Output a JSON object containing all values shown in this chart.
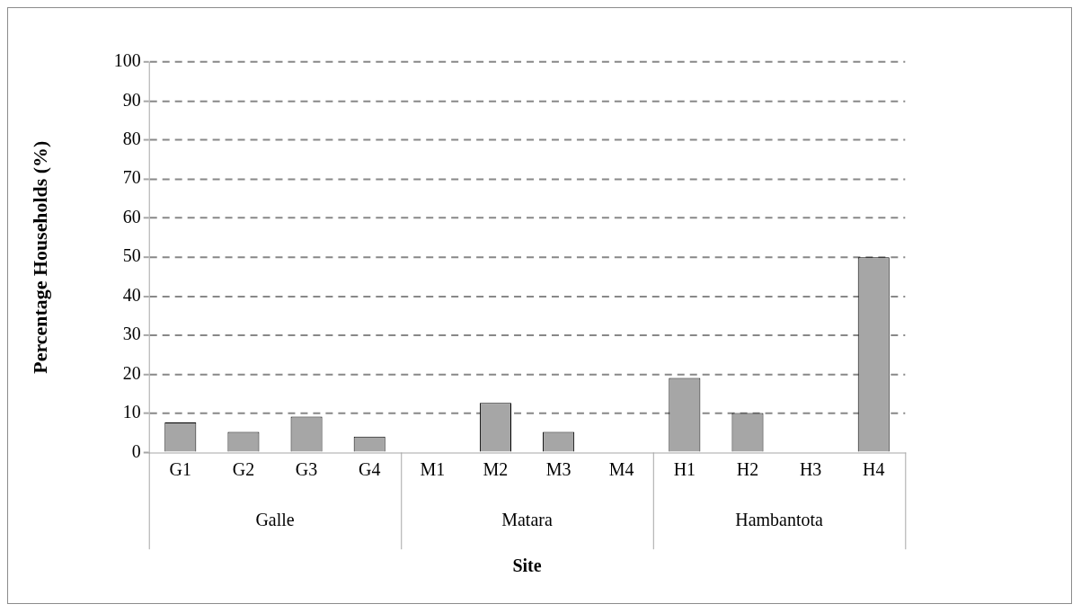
{
  "chart_data": {
    "type": "bar",
    "xlabel": "Site",
    "ylabel": "Percentage Households (%)",
    "categories": [
      "G1",
      "G2",
      "G3",
      "G4",
      "M1",
      "M2",
      "M3",
      "M4",
      "H1",
      "H2",
      "H3",
      "H4"
    ],
    "values": [
      7.7,
      5.3,
      9.2,
      4.1,
      0,
      12.7,
      5.3,
      0,
      19.1,
      10.1,
      0,
      50
    ],
    "color": "#a6a6a6",
    "annotations": [
      "Galle",
      "Matara",
      "Hambantota"
    ],
    "ylim": [
      0,
      100
    ],
    "yticks": [
      0,
      10,
      20,
      30,
      40,
      50,
      60,
      70,
      80,
      90,
      100
    ],
    "grid": "y",
    "legend": false
  }
}
